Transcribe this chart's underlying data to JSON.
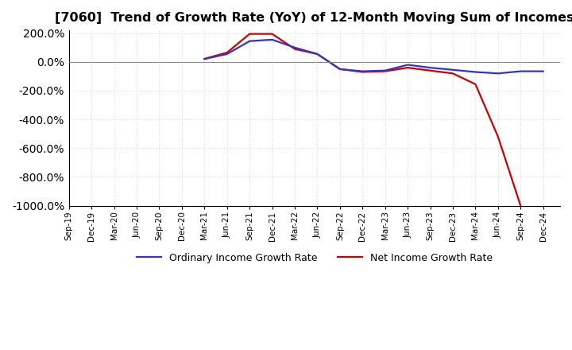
{
  "title": "[7060]  Trend of Growth Rate (YoY) of 12-Month Moving Sum of Incomes",
  "title_fontsize": 11.5,
  "background_color": "#ffffff",
  "grid_color": "#aaaaaa",
  "ylim": [
    -1000,
    220
  ],
  "ordinary_color": "#3333cc",
  "net_color": "#cc0000",
  "line_width": 1.6,
  "legend_ordinary": "Ordinary Income Growth Rate",
  "legend_net": "Net Income Growth Rate",
  "x_labels": [
    "Sep-19",
    "Dec-19",
    "Mar-20",
    "Jun-20",
    "Sep-20",
    "Dec-20",
    "Mar-21",
    "Jun-21",
    "Sep-21",
    "Dec-21",
    "Mar-22",
    "Jun-22",
    "Sep-22",
    "Dec-22",
    "Mar-23",
    "Jun-23",
    "Sep-23",
    "Dec-23",
    "Mar-24",
    "Jun-24",
    "Sep-24",
    "Dec-24"
  ],
  "ordinary_data": [
    null,
    null,
    null,
    null,
    null,
    null,
    20,
    55,
    145,
    155,
    100,
    55,
    -50,
    -65,
    -60,
    -20,
    -40,
    -55,
    -70,
    -80,
    -65,
    -65
  ],
  "net_data": [
    null,
    null,
    null,
    null,
    null,
    null,
    22,
    65,
    195,
    195,
    90,
    55,
    -50,
    -70,
    -65,
    -40,
    -60,
    -80,
    -155,
    -520,
    -1000,
    null
  ]
}
